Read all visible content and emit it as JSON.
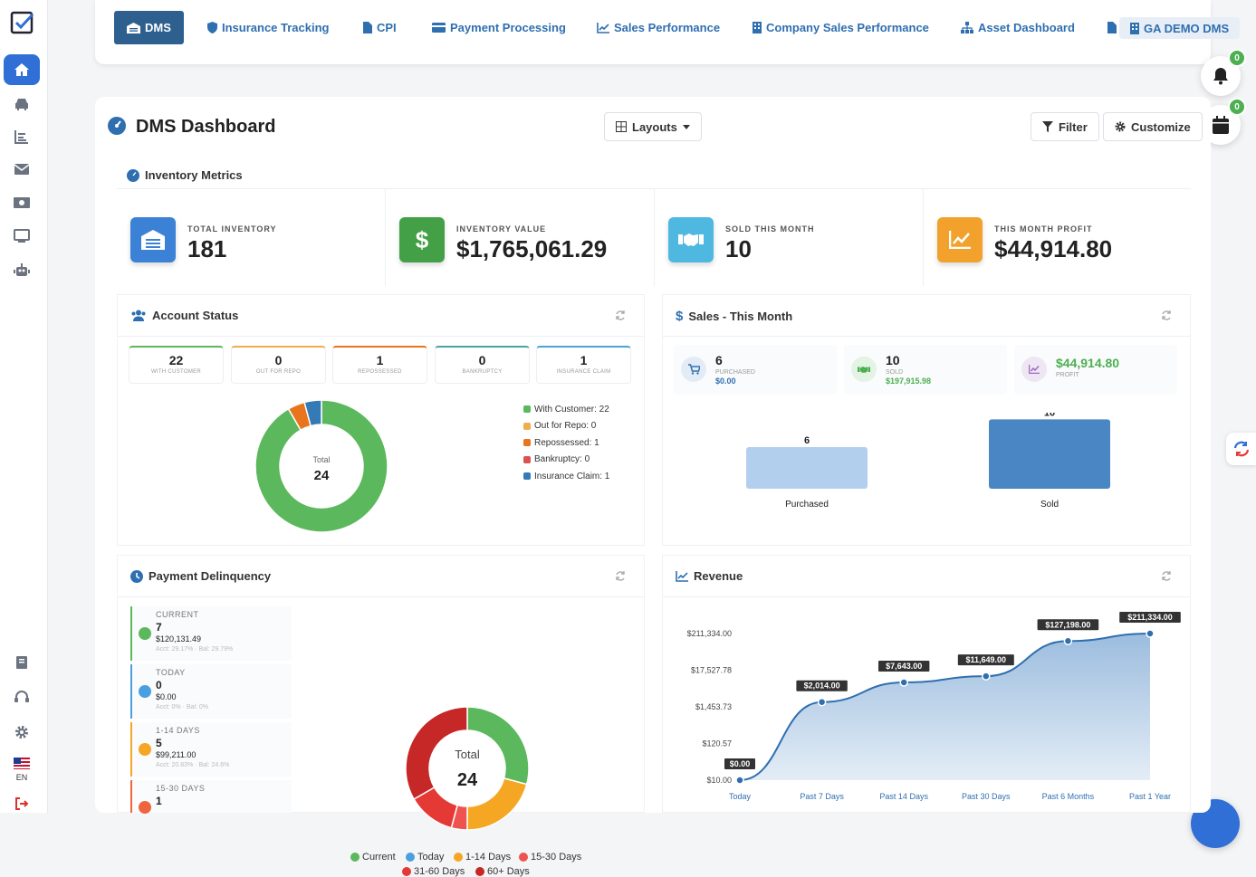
{
  "tabs": [
    {
      "label": "DMS",
      "active": true
    },
    {
      "label": "Insurance Tracking"
    },
    {
      "label": "CPI"
    },
    {
      "label": "Payment Processing"
    },
    {
      "label": "Sales Performance"
    },
    {
      "label": "Company Sales Performance"
    },
    {
      "label": "Asset Dashboard"
    },
    {
      "label": "GA DEMO DMS"
    }
  ],
  "notifications": {
    "bell_count": "0",
    "calendar_count": "0"
  },
  "sidebar": {
    "language": "EN"
  },
  "page": {
    "title": "DMS Dashboard",
    "layouts_label": "Layouts",
    "filter_label": "Filter",
    "customize_label": "Customize"
  },
  "inventory": {
    "title": "Inventory Metrics",
    "metrics": [
      {
        "label": "TOTAL INVENTORY",
        "value": "181",
        "color": "#3b82d6",
        "icon": "garage-icon"
      },
      {
        "label": "INVENTORY VALUE",
        "value": "$1,765,061.29",
        "color": "#43a047",
        "icon": "dollar-icon"
      },
      {
        "label": "SOLD THIS MONTH",
        "value": "10",
        "color": "#4fb8e0",
        "icon": "handshake-icon"
      },
      {
        "label": "THIS MONTH PROFIT",
        "value": "$44,914.80",
        "color": "#f2a22c",
        "icon": "chart-line-icon"
      }
    ]
  },
  "account_status": {
    "title": "Account Status",
    "stats": [
      {
        "value": "22",
        "label": "WITH CUSTOMER",
        "color": "#5cb85c"
      },
      {
        "value": "0",
        "label": "OUT FOR REPO",
        "color": "#f0ad4e"
      },
      {
        "value": "1",
        "label": "REPOSSESSED",
        "color": "#e8741e"
      },
      {
        "value": "0",
        "label": "BANKRUPTCY",
        "color": "#4aa3a0"
      },
      {
        "value": "1",
        "label": "INSURANCE CLAIM",
        "color": "#4aa3d6"
      }
    ],
    "donut_total_label": "Total",
    "donut_total": "24",
    "legend": [
      {
        "label": "With Customer: 22",
        "color": "#5cb85c"
      },
      {
        "label": "Out for Repo: 0",
        "color": "#f0ad4e"
      },
      {
        "label": "Repossessed: 1",
        "color": "#e8741e"
      },
      {
        "label": "Bankruptcy: 0",
        "color": "#d9534f"
      },
      {
        "label": "Insurance Claim: 1",
        "color": "#337ab7"
      }
    ]
  },
  "sales": {
    "title": "Sales - This Month",
    "summary": [
      {
        "value": "6",
        "label": "PURCHASED",
        "amount": "$0.00",
        "color": "#2f6fb0",
        "icon": "cart-icon"
      },
      {
        "value": "10",
        "label": "SOLD",
        "amount": "$197,915.98",
        "color": "#4caf50",
        "icon": "handshake-icon"
      },
      {
        "value": "$44,914.80",
        "label": "PROFIT",
        "amount": "",
        "color": "#4caf50",
        "icon": "chart-line-icon"
      }
    ]
  },
  "delinquency": {
    "title": "Payment Delinquency",
    "items": [
      {
        "label": "CURRENT",
        "count": "7",
        "amount": "$120,131.49",
        "sub": "Acct: 29.17% · Bal: 29.79%",
        "color": "#5cb85c"
      },
      {
        "label": "TODAY",
        "count": "0",
        "amount": "$0.00",
        "sub": "Acct: 0% · Bal: 0%",
        "color": "#4a9fe0"
      },
      {
        "label": "1-14 DAYS",
        "count": "5",
        "amount": "$99,211.00",
        "sub": "Acct: 20.83% · Bal: 24.6%",
        "color": "#f5a623"
      },
      {
        "label": "15-30 DAYS",
        "count": "1",
        "amount": "",
        "sub": "",
        "color": "#f0643c"
      }
    ],
    "donut_total_label": "Total",
    "donut_total": "24",
    "legend": [
      {
        "label": "Current",
        "color": "#5cb85c"
      },
      {
        "label": "Today",
        "color": "#4a9fe0"
      },
      {
        "label": "1-14 Days",
        "color": "#f5a623"
      },
      {
        "label": "15-30 Days",
        "color": "#ef5350"
      },
      {
        "label": "31-60 Days",
        "color": "#e53935"
      },
      {
        "label": "60+ Days",
        "color": "#c62828"
      }
    ]
  },
  "revenue": {
    "title": "Revenue"
  },
  "chart_data": [
    {
      "type": "pie",
      "title": "Account Status",
      "categories": [
        "With Customer",
        "Out for Repo",
        "Repossessed",
        "Bankruptcy",
        "Insurance Claim"
      ],
      "values": [
        22,
        0,
        1,
        0,
        1
      ],
      "colors": [
        "#5cb85c",
        "#f0ad4e",
        "#e8741e",
        "#d9534f",
        "#337ab7"
      ]
    },
    {
      "type": "bar",
      "title": "Sales - This Month",
      "categories": [
        "Purchased",
        "Sold"
      ],
      "values": [
        6,
        10
      ],
      "ylim": [
        0,
        12
      ],
      "colors": [
        "#b3cfee",
        "#4a86c4"
      ]
    },
    {
      "type": "pie",
      "title": "Payment Delinquency",
      "categories": [
        "Current",
        "Today",
        "1-14 Days",
        "15-30 Days",
        "31-60 Days",
        "60+ Days"
      ],
      "values": [
        7,
        0,
        5,
        1,
        3,
        8
      ],
      "colors": [
        "#5cb85c",
        "#4a9fe0",
        "#f5a623",
        "#ef5350",
        "#e53935",
        "#c62828"
      ]
    },
    {
      "type": "area",
      "title": "Revenue",
      "categories": [
        "Today",
        "Past 7 Days",
        "Past 14 Days",
        "Past 30 Days",
        "Past 6 Months",
        "Past 1 Year"
      ],
      "values": [
        0,
        2014,
        7643,
        11649,
        127198,
        211334
      ],
      "point_labels": [
        "$0.00",
        "$2,014.00",
        "$7,643.00",
        "$11,649.00",
        "$127,198.00",
        "$211,334.00"
      ],
      "y_ticks": [
        "$10.00",
        "$120.57",
        "$1,453.73",
        "$17,527.78",
        "$211,334.00"
      ],
      "log_scale": true
    }
  ]
}
